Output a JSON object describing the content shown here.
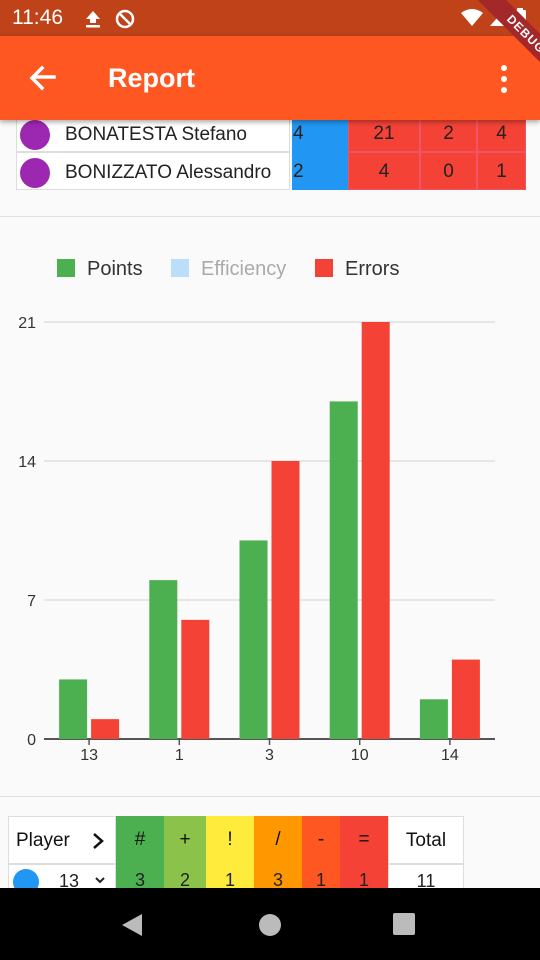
{
  "status_bar": {
    "time": "11:46"
  },
  "app_bar": {
    "title": "Report",
    "debug_label": "DEBUG"
  },
  "top_table": {
    "rows": [
      {
        "name": "BONATESTA Stefano",
        "col1": "4",
        "col2": "21",
        "col3": "2",
        "col4": "4"
      },
      {
        "name": "BONIZZATO Alessandro",
        "col1": "2",
        "col2": "4",
        "col3": "0",
        "col4": "1"
      }
    ]
  },
  "chart_data": {
    "type": "bar",
    "legend": [
      {
        "name": "Points",
        "color": "#4caf50",
        "enabled": true
      },
      {
        "name": "Efficiency",
        "color": "#bbdefb",
        "enabled": false
      },
      {
        "name": "Errors",
        "color": "#f44336",
        "enabled": true
      }
    ],
    "categories": [
      "13",
      "1",
      "3",
      "10",
      "14"
    ],
    "series": [
      {
        "name": "Points",
        "color": "#4caf50",
        "values": [
          3,
          8,
          10,
          17,
          2
        ]
      },
      {
        "name": "Errors",
        "color": "#f44336",
        "values": [
          1,
          6,
          14,
          21,
          4
        ]
      }
    ],
    "yticks": [
      "0",
      "7",
      "14",
      "21"
    ],
    "ylim": [
      0,
      21
    ],
    "grid": true,
    "legend_position": "top-left"
  },
  "bottom_table": {
    "headers": [
      {
        "label": "Player",
        "color": "#ffffff"
      },
      {
        "label": "#",
        "color": "#4caf50"
      },
      {
        "label": "+",
        "color": "#8bc34a"
      },
      {
        "label": "!",
        "color": "#ffeb3b"
      },
      {
        "label": "/",
        "color": "#ff9800"
      },
      {
        "label": "-",
        "color": "#ff5722"
      },
      {
        "label": "=",
        "color": "#f44336"
      },
      {
        "label": "Total",
        "color": "#ffffff"
      }
    ],
    "first_row": {
      "player": "13",
      "values": [
        "3",
        "2",
        "1",
        "3",
        "1",
        "1"
      ],
      "total": "11"
    }
  }
}
